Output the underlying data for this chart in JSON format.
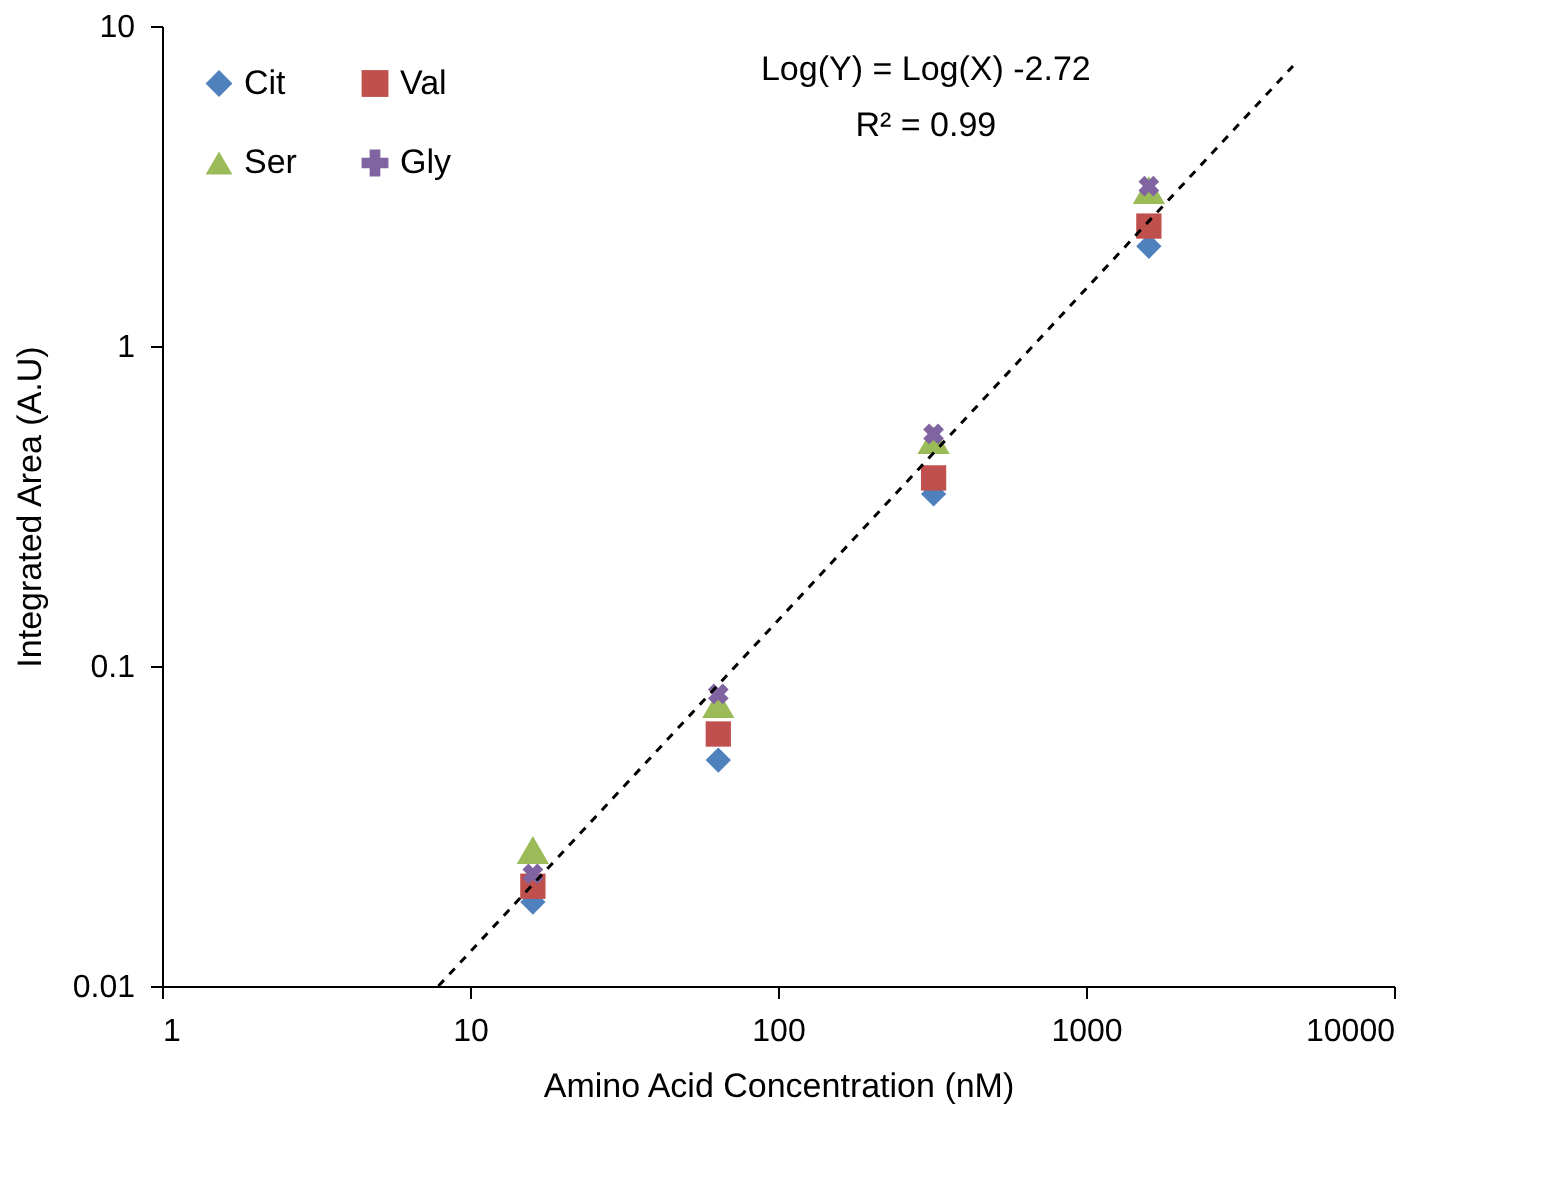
{
  "chart_data": {
    "type": "scatter",
    "xlabel": "Amino Acid Concentration (nM)",
    "ylabel": "Integrated Area (A.U)",
    "x": [
      16,
      64,
      320,
      1600
    ],
    "series": [
      {
        "name": "Cit",
        "color": "#4f81bd",
        "marker": "diamond",
        "values": [
          0.0183,
          0.0508,
          0.345,
          2.05
        ]
      },
      {
        "name": "Val",
        "color": "#c0504d",
        "marker": "square",
        "values": [
          0.0205,
          0.0613,
          0.387,
          2.37
        ]
      },
      {
        "name": "Ser",
        "color": "#9bbb59",
        "marker": "triangle",
        "values": [
          0.0266,
          0.076,
          0.508,
          3.07
        ]
      },
      {
        "name": "Gly",
        "color": "#8064a2",
        "marker": "cross",
        "values": [
          0.0224,
          0.0818,
          0.531,
          3.16
        ]
      },
      {
        "type": "line",
        "color": "#000000",
        "line_style": "dashed",
        "x": [
          7.9,
          4700
        ],
        "values": [
          0.01,
          7.5
        ]
      }
    ],
    "annotations": [
      "Log(Y) = Log(X) -2.72",
      "R² = 0.99"
    ],
    "log": "xy",
    "xlim": [
      1,
      10000
    ],
    "xticks": [
      1,
      10,
      100,
      1000,
      10000
    ],
    "ylim": [
      0.01,
      10
    ],
    "yticks": [
      0.01,
      0.1,
      1,
      10
    ],
    "grid": false,
    "legend": "top left"
  }
}
